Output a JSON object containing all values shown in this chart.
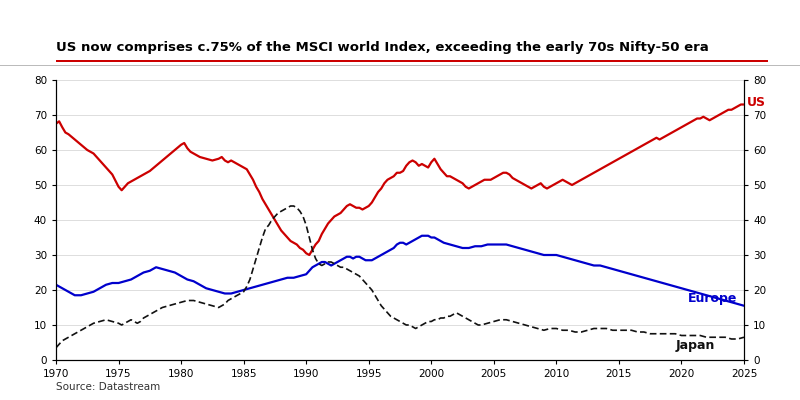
{
  "title": "US now comprises c.75% of the MSCI world Index, exceeding the early 70s Nifty-50 era",
  "source": "Source: Datastream",
  "title_color": "#000000",
  "title_underline_color": "#cc0000",
  "background_color": "#ffffff",
  "xlim": [
    1970,
    2025
  ],
  "ylim": [
    0,
    80
  ],
  "us_color": "#cc0000",
  "europe_color": "#0000cc",
  "japan_color": "#111111",
  "us_label": "US",
  "europe_label": "Europe",
  "japan_label": "Japan",
  "us_data": [
    [
      1970.0,
      67.5
    ],
    [
      1970.25,
      68.2
    ],
    [
      1970.5,
      66.5
    ],
    [
      1970.75,
      65.0
    ],
    [
      1971.0,
      64.5
    ],
    [
      1971.5,
      63.0
    ],
    [
      1972.0,
      61.5
    ],
    [
      1972.5,
      60.0
    ],
    [
      1973.0,
      59.0
    ],
    [
      1973.5,
      57.0
    ],
    [
      1974.0,
      55.0
    ],
    [
      1974.5,
      53.0
    ],
    [
      1975.0,
      49.5
    ],
    [
      1975.25,
      48.5
    ],
    [
      1975.5,
      49.5
    ],
    [
      1975.75,
      50.5
    ],
    [
      1976.0,
      51.0
    ],
    [
      1976.5,
      52.0
    ],
    [
      1977.0,
      53.0
    ],
    [
      1977.5,
      54.0
    ],
    [
      1978.0,
      55.5
    ],
    [
      1978.5,
      57.0
    ],
    [
      1979.0,
      58.5
    ],
    [
      1979.5,
      60.0
    ],
    [
      1980.0,
      61.5
    ],
    [
      1980.25,
      62.0
    ],
    [
      1980.5,
      60.5
    ],
    [
      1980.75,
      59.5
    ],
    [
      1981.0,
      59.0
    ],
    [
      1981.5,
      58.0
    ],
    [
      1982.0,
      57.5
    ],
    [
      1982.5,
      57.0
    ],
    [
      1983.0,
      57.5
    ],
    [
      1983.25,
      58.0
    ],
    [
      1983.5,
      57.0
    ],
    [
      1983.75,
      56.5
    ],
    [
      1984.0,
      57.0
    ],
    [
      1984.5,
      56.0
    ],
    [
      1985.0,
      55.0
    ],
    [
      1985.25,
      54.5
    ],
    [
      1985.5,
      53.0
    ],
    [
      1985.75,
      51.5
    ],
    [
      1986.0,
      49.5
    ],
    [
      1986.25,
      48.0
    ],
    [
      1986.5,
      46.0
    ],
    [
      1986.75,
      44.5
    ],
    [
      1987.0,
      43.0
    ],
    [
      1987.25,
      41.5
    ],
    [
      1987.5,
      40.0
    ],
    [
      1987.75,
      38.5
    ],
    [
      1988.0,
      37.0
    ],
    [
      1988.25,
      36.0
    ],
    [
      1988.5,
      35.0
    ],
    [
      1988.75,
      34.0
    ],
    [
      1989.0,
      33.5
    ],
    [
      1989.25,
      33.0
    ],
    [
      1989.5,
      32.0
    ],
    [
      1989.75,
      31.5
    ],
    [
      1990.0,
      30.5
    ],
    [
      1990.25,
      30.0
    ],
    [
      1990.5,
      31.5
    ],
    [
      1990.75,
      33.0
    ],
    [
      1991.0,
      34.0
    ],
    [
      1991.25,
      36.0
    ],
    [
      1991.5,
      37.5
    ],
    [
      1991.75,
      39.0
    ],
    [
      1992.0,
      40.0
    ],
    [
      1992.25,
      41.0
    ],
    [
      1992.5,
      41.5
    ],
    [
      1992.75,
      42.0
    ],
    [
      1993.0,
      43.0
    ],
    [
      1993.25,
      44.0
    ],
    [
      1993.5,
      44.5
    ],
    [
      1993.75,
      44.0
    ],
    [
      1994.0,
      43.5
    ],
    [
      1994.25,
      43.5
    ],
    [
      1994.5,
      43.0
    ],
    [
      1994.75,
      43.5
    ],
    [
      1995.0,
      44.0
    ],
    [
      1995.25,
      45.0
    ],
    [
      1995.5,
      46.5
    ],
    [
      1995.75,
      48.0
    ],
    [
      1996.0,
      49.0
    ],
    [
      1996.25,
      50.5
    ],
    [
      1996.5,
      51.5
    ],
    [
      1996.75,
      52.0
    ],
    [
      1997.0,
      52.5
    ],
    [
      1997.25,
      53.5
    ],
    [
      1997.5,
      53.5
    ],
    [
      1997.75,
      54.0
    ],
    [
      1998.0,
      55.5
    ],
    [
      1998.25,
      56.5
    ],
    [
      1998.5,
      57.0
    ],
    [
      1998.75,
      56.5
    ],
    [
      1999.0,
      55.5
    ],
    [
      1999.25,
      56.0
    ],
    [
      1999.5,
      55.5
    ],
    [
      1999.75,
      55.0
    ],
    [
      2000.0,
      56.5
    ],
    [
      2000.25,
      57.5
    ],
    [
      2000.5,
      56.0
    ],
    [
      2000.75,
      54.5
    ],
    [
      2001.0,
      53.5
    ],
    [
      2001.25,
      52.5
    ],
    [
      2001.5,
      52.5
    ],
    [
      2001.75,
      52.0
    ],
    [
      2002.0,
      51.5
    ],
    [
      2002.25,
      51.0
    ],
    [
      2002.5,
      50.5
    ],
    [
      2002.75,
      49.5
    ],
    [
      2003.0,
      49.0
    ],
    [
      2003.25,
      49.5
    ],
    [
      2003.5,
      50.0
    ],
    [
      2003.75,
      50.5
    ],
    [
      2004.0,
      51.0
    ],
    [
      2004.25,
      51.5
    ],
    [
      2004.5,
      51.5
    ],
    [
      2004.75,
      51.5
    ],
    [
      2005.0,
      52.0
    ],
    [
      2005.25,
      52.5
    ],
    [
      2005.5,
      53.0
    ],
    [
      2005.75,
      53.5
    ],
    [
      2006.0,
      53.5
    ],
    [
      2006.25,
      53.0
    ],
    [
      2006.5,
      52.0
    ],
    [
      2006.75,
      51.5
    ],
    [
      2007.0,
      51.0
    ],
    [
      2007.25,
      50.5
    ],
    [
      2007.5,
      50.0
    ],
    [
      2007.75,
      49.5
    ],
    [
      2008.0,
      49.0
    ],
    [
      2008.25,
      49.5
    ],
    [
      2008.5,
      50.0
    ],
    [
      2008.75,
      50.5
    ],
    [
      2009.0,
      49.5
    ],
    [
      2009.25,
      49.0
    ],
    [
      2009.5,
      49.5
    ],
    [
      2009.75,
      50.0
    ],
    [
      2010.0,
      50.5
    ],
    [
      2010.25,
      51.0
    ],
    [
      2010.5,
      51.5
    ],
    [
      2010.75,
      51.0
    ],
    [
      2011.0,
      50.5
    ],
    [
      2011.25,
      50.0
    ],
    [
      2011.5,
      50.5
    ],
    [
      2011.75,
      51.0
    ],
    [
      2012.0,
      51.5
    ],
    [
      2012.25,
      52.0
    ],
    [
      2012.5,
      52.5
    ],
    [
      2012.75,
      53.0
    ],
    [
      2013.0,
      53.5
    ],
    [
      2013.25,
      54.0
    ],
    [
      2013.5,
      54.5
    ],
    [
      2013.75,
      55.0
    ],
    [
      2014.0,
      55.5
    ],
    [
      2014.25,
      56.0
    ],
    [
      2014.5,
      56.5
    ],
    [
      2014.75,
      57.0
    ],
    [
      2015.0,
      57.5
    ],
    [
      2015.25,
      58.0
    ],
    [
      2015.5,
      58.5
    ],
    [
      2015.75,
      59.0
    ],
    [
      2016.0,
      59.5
    ],
    [
      2016.25,
      60.0
    ],
    [
      2016.5,
      60.5
    ],
    [
      2016.75,
      61.0
    ],
    [
      2017.0,
      61.5
    ],
    [
      2017.25,
      62.0
    ],
    [
      2017.5,
      62.5
    ],
    [
      2017.75,
      63.0
    ],
    [
      2018.0,
      63.5
    ],
    [
      2018.25,
      63.0
    ],
    [
      2018.5,
      63.5
    ],
    [
      2018.75,
      64.0
    ],
    [
      2019.0,
      64.5
    ],
    [
      2019.25,
      65.0
    ],
    [
      2019.5,
      65.5
    ],
    [
      2019.75,
      66.0
    ],
    [
      2020.0,
      66.5
    ],
    [
      2020.25,
      67.0
    ],
    [
      2020.5,
      67.5
    ],
    [
      2020.75,
      68.0
    ],
    [
      2021.0,
      68.5
    ],
    [
      2021.25,
      69.0
    ],
    [
      2021.5,
      69.0
    ],
    [
      2021.75,
      69.5
    ],
    [
      2022.0,
      69.0
    ],
    [
      2022.25,
      68.5
    ],
    [
      2022.5,
      69.0
    ],
    [
      2022.75,
      69.5
    ],
    [
      2023.0,
      70.0
    ],
    [
      2023.25,
      70.5
    ],
    [
      2023.5,
      71.0
    ],
    [
      2023.75,
      71.5
    ],
    [
      2024.0,
      71.5
    ],
    [
      2024.25,
      72.0
    ],
    [
      2024.5,
      72.5
    ],
    [
      2024.75,
      73.0
    ],
    [
      2025.0,
      73.0
    ]
  ],
  "europe_data": [
    [
      1970.0,
      21.5
    ],
    [
      1970.25,
      21.0
    ],
    [
      1970.5,
      20.5
    ],
    [
      1970.75,
      20.0
    ],
    [
      1971.0,
      19.5
    ],
    [
      1971.5,
      18.5
    ],
    [
      1972.0,
      18.5
    ],
    [
      1972.5,
      19.0
    ],
    [
      1973.0,
      19.5
    ],
    [
      1973.5,
      20.5
    ],
    [
      1974.0,
      21.5
    ],
    [
      1974.5,
      22.0
    ],
    [
      1975.0,
      22.0
    ],
    [
      1975.5,
      22.5
    ],
    [
      1976.0,
      23.0
    ],
    [
      1976.5,
      24.0
    ],
    [
      1977.0,
      25.0
    ],
    [
      1977.5,
      25.5
    ],
    [
      1978.0,
      26.5
    ],
    [
      1978.5,
      26.0
    ],
    [
      1979.0,
      25.5
    ],
    [
      1979.5,
      25.0
    ],
    [
      1980.0,
      24.0
    ],
    [
      1980.5,
      23.0
    ],
    [
      1981.0,
      22.5
    ],
    [
      1981.5,
      21.5
    ],
    [
      1982.0,
      20.5
    ],
    [
      1982.5,
      20.0
    ],
    [
      1983.0,
      19.5
    ],
    [
      1983.5,
      19.0
    ],
    [
      1984.0,
      19.0
    ],
    [
      1984.5,
      19.5
    ],
    [
      1985.0,
      20.0
    ],
    [
      1985.5,
      20.5
    ],
    [
      1986.0,
      21.0
    ],
    [
      1986.5,
      21.5
    ],
    [
      1987.0,
      22.0
    ],
    [
      1987.5,
      22.5
    ],
    [
      1988.0,
      23.0
    ],
    [
      1988.5,
      23.5
    ],
    [
      1989.0,
      23.5
    ],
    [
      1989.5,
      24.0
    ],
    [
      1990.0,
      24.5
    ],
    [
      1990.25,
      25.5
    ],
    [
      1990.5,
      26.5
    ],
    [
      1990.75,
      27.0
    ],
    [
      1991.0,
      27.5
    ],
    [
      1991.25,
      28.0
    ],
    [
      1991.5,
      28.0
    ],
    [
      1991.75,
      27.5
    ],
    [
      1992.0,
      27.0
    ],
    [
      1992.25,
      27.5
    ],
    [
      1992.5,
      28.0
    ],
    [
      1992.75,
      28.5
    ],
    [
      1993.0,
      29.0
    ],
    [
      1993.25,
      29.5
    ],
    [
      1993.5,
      29.5
    ],
    [
      1993.75,
      29.0
    ],
    [
      1994.0,
      29.5
    ],
    [
      1994.25,
      29.5
    ],
    [
      1994.5,
      29.0
    ],
    [
      1994.75,
      28.5
    ],
    [
      1995.0,
      28.5
    ],
    [
      1995.25,
      28.5
    ],
    [
      1995.5,
      29.0
    ],
    [
      1995.75,
      29.5
    ],
    [
      1996.0,
      30.0
    ],
    [
      1996.25,
      30.5
    ],
    [
      1996.5,
      31.0
    ],
    [
      1996.75,
      31.5
    ],
    [
      1997.0,
      32.0
    ],
    [
      1997.25,
      33.0
    ],
    [
      1997.5,
      33.5
    ],
    [
      1997.75,
      33.5
    ],
    [
      1998.0,
      33.0
    ],
    [
      1998.25,
      33.5
    ],
    [
      1998.5,
      34.0
    ],
    [
      1998.75,
      34.5
    ],
    [
      1999.0,
      35.0
    ],
    [
      1999.25,
      35.5
    ],
    [
      1999.5,
      35.5
    ],
    [
      1999.75,
      35.5
    ],
    [
      2000.0,
      35.0
    ],
    [
      2000.25,
      35.0
    ],
    [
      2000.5,
      34.5
    ],
    [
      2000.75,
      34.0
    ],
    [
      2001.0,
      33.5
    ],
    [
      2001.5,
      33.0
    ],
    [
      2002.0,
      32.5
    ],
    [
      2002.5,
      32.0
    ],
    [
      2003.0,
      32.0
    ],
    [
      2003.5,
      32.5
    ],
    [
      2004.0,
      32.5
    ],
    [
      2004.5,
      33.0
    ],
    [
      2005.0,
      33.0
    ],
    [
      2005.5,
      33.0
    ],
    [
      2006.0,
      33.0
    ],
    [
      2006.5,
      32.5
    ],
    [
      2007.0,
      32.0
    ],
    [
      2007.5,
      31.5
    ],
    [
      2008.0,
      31.0
    ],
    [
      2008.5,
      30.5
    ],
    [
      2009.0,
      30.0
    ],
    [
      2009.5,
      30.0
    ],
    [
      2010.0,
      30.0
    ],
    [
      2010.5,
      29.5
    ],
    [
      2011.0,
      29.0
    ],
    [
      2011.5,
      28.5
    ],
    [
      2012.0,
      28.0
    ],
    [
      2012.5,
      27.5
    ],
    [
      2013.0,
      27.0
    ],
    [
      2013.5,
      27.0
    ],
    [
      2014.0,
      26.5
    ],
    [
      2014.5,
      26.0
    ],
    [
      2015.0,
      25.5
    ],
    [
      2015.5,
      25.0
    ],
    [
      2016.0,
      24.5
    ],
    [
      2016.5,
      24.0
    ],
    [
      2017.0,
      23.5
    ],
    [
      2017.5,
      23.0
    ],
    [
      2018.0,
      22.5
    ],
    [
      2018.5,
      22.0
    ],
    [
      2019.0,
      21.5
    ],
    [
      2019.5,
      21.0
    ],
    [
      2020.0,
      20.5
    ],
    [
      2020.5,
      20.0
    ],
    [
      2021.0,
      19.5
    ],
    [
      2021.5,
      19.0
    ],
    [
      2022.0,
      18.5
    ],
    [
      2022.5,
      18.0
    ],
    [
      2023.0,
      17.5
    ],
    [
      2023.5,
      17.0
    ],
    [
      2024.0,
      16.5
    ],
    [
      2024.5,
      16.0
    ],
    [
      2025.0,
      15.5
    ]
  ],
  "japan_data": [
    [
      1970.0,
      3.5
    ],
    [
      1970.25,
      4.5
    ],
    [
      1970.5,
      5.5
    ],
    [
      1970.75,
      6.0
    ],
    [
      1971.0,
      6.5
    ],
    [
      1971.5,
      7.5
    ],
    [
      1972.0,
      8.5
    ],
    [
      1972.5,
      9.5
    ],
    [
      1973.0,
      10.5
    ],
    [
      1973.5,
      11.0
    ],
    [
      1974.0,
      11.5
    ],
    [
      1974.5,
      11.0
    ],
    [
      1975.0,
      10.5
    ],
    [
      1975.25,
      10.0
    ],
    [
      1975.5,
      10.5
    ],
    [
      1975.75,
      11.0
    ],
    [
      1976.0,
      11.5
    ],
    [
      1976.25,
      11.0
    ],
    [
      1976.5,
      10.5
    ],
    [
      1976.75,
      11.0
    ],
    [
      1977.0,
      12.0
    ],
    [
      1977.5,
      13.0
    ],
    [
      1978.0,
      14.0
    ],
    [
      1978.5,
      15.0
    ],
    [
      1979.0,
      15.5
    ],
    [
      1979.5,
      16.0
    ],
    [
      1980.0,
      16.5
    ],
    [
      1980.5,
      17.0
    ],
    [
      1981.0,
      17.0
    ],
    [
      1981.5,
      16.5
    ],
    [
      1982.0,
      16.0
    ],
    [
      1982.5,
      15.5
    ],
    [
      1983.0,
      15.0
    ],
    [
      1983.25,
      15.5
    ],
    [
      1983.5,
      16.0
    ],
    [
      1983.75,
      17.0
    ],
    [
      1984.0,
      17.5
    ],
    [
      1984.25,
      18.0
    ],
    [
      1984.5,
      18.5
    ],
    [
      1984.75,
      19.0
    ],
    [
      1985.0,
      19.5
    ],
    [
      1985.25,
      21.0
    ],
    [
      1985.5,
      23.0
    ],
    [
      1985.75,
      26.0
    ],
    [
      1986.0,
      29.0
    ],
    [
      1986.25,
      32.0
    ],
    [
      1986.5,
      35.0
    ],
    [
      1986.75,
      37.5
    ],
    [
      1987.0,
      38.5
    ],
    [
      1987.25,
      40.0
    ],
    [
      1987.5,
      41.0
    ],
    [
      1987.75,
      42.0
    ],
    [
      1988.0,
      42.5
    ],
    [
      1988.25,
      43.0
    ],
    [
      1988.5,
      43.5
    ],
    [
      1988.75,
      44.0
    ],
    [
      1989.0,
      44.0
    ],
    [
      1989.25,
      43.5
    ],
    [
      1989.5,
      42.5
    ],
    [
      1989.75,
      41.0
    ],
    [
      1990.0,
      38.5
    ],
    [
      1990.25,
      35.0
    ],
    [
      1990.5,
      31.5
    ],
    [
      1990.75,
      29.0
    ],
    [
      1991.0,
      27.5
    ],
    [
      1991.25,
      27.0
    ],
    [
      1991.5,
      27.5
    ],
    [
      1991.75,
      28.0
    ],
    [
      1992.0,
      28.0
    ],
    [
      1992.25,
      27.5
    ],
    [
      1992.5,
      27.0
    ],
    [
      1992.75,
      26.5
    ],
    [
      1993.0,
      26.5
    ],
    [
      1993.25,
      26.0
    ],
    [
      1993.5,
      25.5
    ],
    [
      1993.75,
      25.0
    ],
    [
      1994.0,
      24.5
    ],
    [
      1994.25,
      24.0
    ],
    [
      1994.5,
      23.0
    ],
    [
      1994.75,
      22.0
    ],
    [
      1995.0,
      21.0
    ],
    [
      1995.25,
      20.0
    ],
    [
      1995.5,
      18.5
    ],
    [
      1995.75,
      17.0
    ],
    [
      1996.0,
      15.5
    ],
    [
      1996.25,
      14.5
    ],
    [
      1996.5,
      13.5
    ],
    [
      1996.75,
      12.5
    ],
    [
      1997.0,
      12.0
    ],
    [
      1997.25,
      11.5
    ],
    [
      1997.5,
      11.0
    ],
    [
      1997.75,
      10.5
    ],
    [
      1998.0,
      10.0
    ],
    [
      1998.25,
      10.0
    ],
    [
      1998.5,
      9.5
    ],
    [
      1998.75,
      9.0
    ],
    [
      1999.0,
      9.5
    ],
    [
      1999.25,
      10.0
    ],
    [
      1999.5,
      10.5
    ],
    [
      1999.75,
      11.0
    ],
    [
      2000.0,
      11.0
    ],
    [
      2000.25,
      11.5
    ],
    [
      2000.5,
      11.5
    ],
    [
      2000.75,
      12.0
    ],
    [
      2001.0,
      12.0
    ],
    [
      2001.25,
      12.5
    ],
    [
      2001.5,
      12.5
    ],
    [
      2001.75,
      13.0
    ],
    [
      2002.0,
      13.5
    ],
    [
      2002.25,
      13.0
    ],
    [
      2002.5,
      12.5
    ],
    [
      2002.75,
      12.0
    ],
    [
      2003.0,
      11.5
    ],
    [
      2003.25,
      11.0
    ],
    [
      2003.5,
      10.5
    ],
    [
      2003.75,
      10.0
    ],
    [
      2004.0,
      10.0
    ],
    [
      2004.5,
      10.5
    ],
    [
      2005.0,
      11.0
    ],
    [
      2005.5,
      11.5
    ],
    [
      2006.0,
      11.5
    ],
    [
      2006.5,
      11.0
    ],
    [
      2007.0,
      10.5
    ],
    [
      2007.5,
      10.0
    ],
    [
      2008.0,
      9.5
    ],
    [
      2008.5,
      9.0
    ],
    [
      2009.0,
      8.5
    ],
    [
      2009.5,
      9.0
    ],
    [
      2010.0,
      9.0
    ],
    [
      2010.5,
      8.5
    ],
    [
      2011.0,
      8.5
    ],
    [
      2011.5,
      8.0
    ],
    [
      2012.0,
      8.0
    ],
    [
      2012.5,
      8.5
    ],
    [
      2013.0,
      9.0
    ],
    [
      2013.5,
      9.0
    ],
    [
      2014.0,
      9.0
    ],
    [
      2014.5,
      8.5
    ],
    [
      2015.0,
      8.5
    ],
    [
      2015.5,
      8.5
    ],
    [
      2016.0,
      8.5
    ],
    [
      2016.5,
      8.0
    ],
    [
      2017.0,
      8.0
    ],
    [
      2017.5,
      7.5
    ],
    [
      2018.0,
      7.5
    ],
    [
      2018.5,
      7.5
    ],
    [
      2019.0,
      7.5
    ],
    [
      2019.5,
      7.5
    ],
    [
      2020.0,
      7.0
    ],
    [
      2020.5,
      7.0
    ],
    [
      2021.0,
      7.0
    ],
    [
      2021.5,
      7.0
    ],
    [
      2022.0,
      6.5
    ],
    [
      2022.5,
      6.5
    ],
    [
      2023.0,
      6.5
    ],
    [
      2023.5,
      6.5
    ],
    [
      2024.0,
      6.0
    ],
    [
      2024.5,
      6.0
    ],
    [
      2025.0,
      6.5
    ]
  ]
}
